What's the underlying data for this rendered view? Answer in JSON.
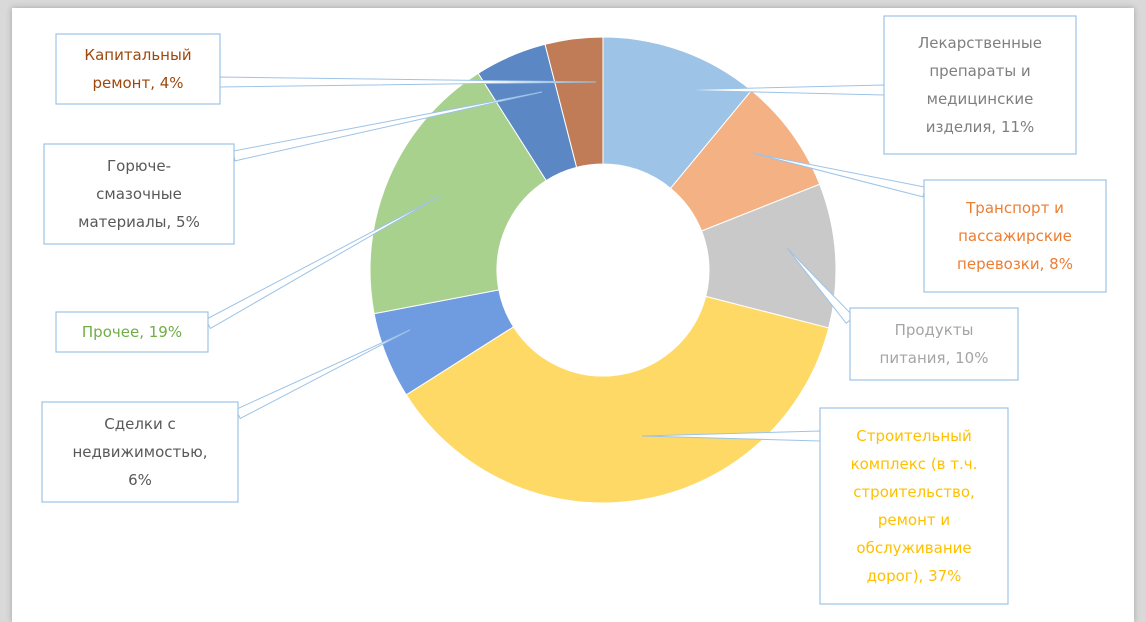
{
  "chart_data": {
    "type": "pie",
    "donut": true,
    "title": "",
    "slices": [
      {
        "label": "Лекарственные препараты и медицинские изделия, 11%",
        "lines": [
          "Лекарственные",
          "препараты и",
          "медицинские",
          "изделия, 11%"
        ],
        "value": 11,
        "color": "#9dc3e6",
        "text_color": "#7f7f7f"
      },
      {
        "label": "Транспорт и пассажирские перевозки, 8%",
        "lines": [
          "Транспорт и",
          "пассажирские",
          "перевозки, 8%"
        ],
        "value": 8,
        "color": "#f4b183",
        "text_color": "#ed7d31"
      },
      {
        "label": "Продукты питания, 10%",
        "lines": [
          "Продукты",
          "питания, 10%"
        ],
        "value": 10,
        "color": "#c9c9c9",
        "text_color": "#a5a5a5"
      },
      {
        "label": "Строительный комплекс (в т.ч. строительство, ремонт и обслуживание дорог), 37%",
        "lines": [
          "Строительный",
          "комплекс (в т.ч.",
          "строительство,",
          "ремонт и",
          "обслуживание",
          "дорог), 37%"
        ],
        "value": 37,
        "color": "#ffd966",
        "text_color": "#ffc000"
      },
      {
        "label": "Сделки с недвижимостью, 6%",
        "lines": [
          "Сделки с",
          "недвижимостью,",
          "6%"
        ],
        "value": 6,
        "color": "#6f9be0",
        "text_color": "#595959"
      },
      {
        "label": "Прочее, 19%",
        "lines": [
          "Прочее, 19%"
        ],
        "value": 19,
        "color": "#a9d18e",
        "text_color": "#70ad47"
      },
      {
        "label": "Горюче-смазочные материалы, 5%",
        "lines": [
          "Горюче-",
          "смазочные",
          "материалы, 5%"
        ],
        "value": 5,
        "color": "#5b87c4",
        "text_color": "#595959"
      },
      {
        "label": "Капитальный ремонт, 4%",
        "lines": [
          "Капитальный",
          "ремонт, 4%"
        ],
        "value": 4,
        "color": "#c07c57",
        "text_color": "#9e480e"
      }
    ]
  }
}
